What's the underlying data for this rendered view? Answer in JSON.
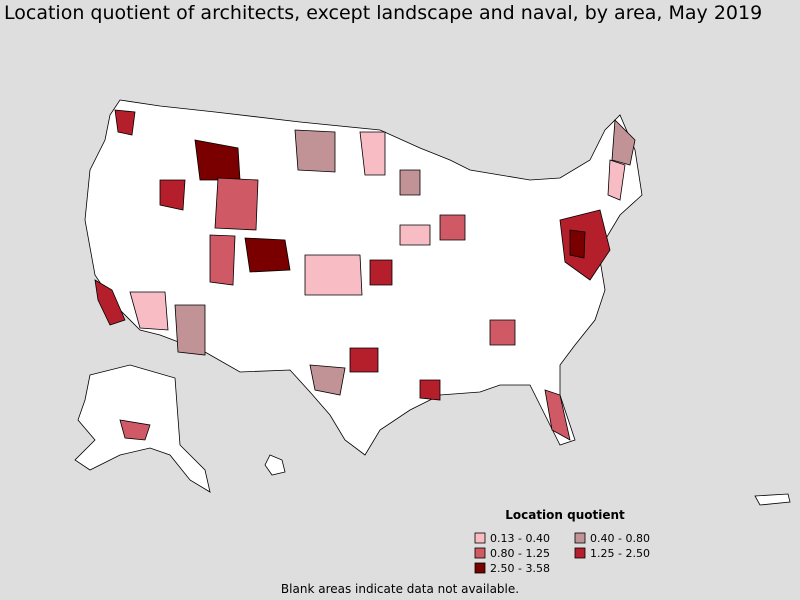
{
  "title": "Location quotient of architects, except landscape and naval, by area, May 2019",
  "legend": {
    "title": "Location quotient",
    "items": [
      {
        "label": "0.13 - 0.40",
        "color": "#f7bcc4"
      },
      {
        "label": "0.40 - 0.80",
        "color": "#c29396"
      },
      {
        "label": "0.80 - 1.25",
        "color": "#cf5a66"
      },
      {
        "label": "1.25 - 2.50",
        "color": "#b51f2c"
      },
      {
        "label": "2.50 - 3.58",
        "color": "#7a0000"
      }
    ]
  },
  "footnote": "Blank areas indicate data not available."
}
